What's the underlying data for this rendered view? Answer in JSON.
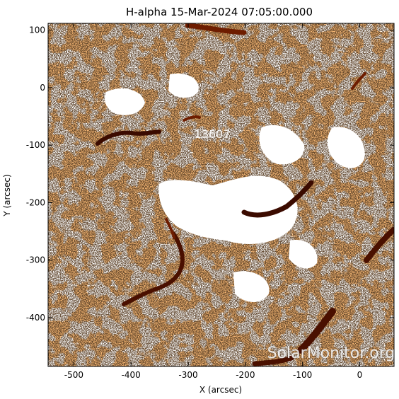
{
  "map": {
    "title": "H-alpha 15-Mar-2024 07:05:00.000",
    "x_axis_label": "X (arcsec)",
    "y_axis_label": "Y (arcsec)",
    "x_range": [
      -545,
      60
    ],
    "y_range": [
      -485,
      112
    ],
    "x_ticks": [
      -500,
      -400,
      -300,
      -200,
      -100,
      0
    ],
    "y_ticks": [
      100,
      0,
      -100,
      -200,
      -300,
      -400
    ],
    "active_region": {
      "label": "13607",
      "x": -258,
      "y": -80
    },
    "watermark": "SolarMonitor.org",
    "colors": {
      "background": "#ffffff",
      "chromosphere": "#e9772c",
      "chromosphere_light": "#f39a52",
      "filament": "#6e1d00",
      "filament_core": "#2b0600",
      "speckle": "#1a0c04"
    }
  }
}
